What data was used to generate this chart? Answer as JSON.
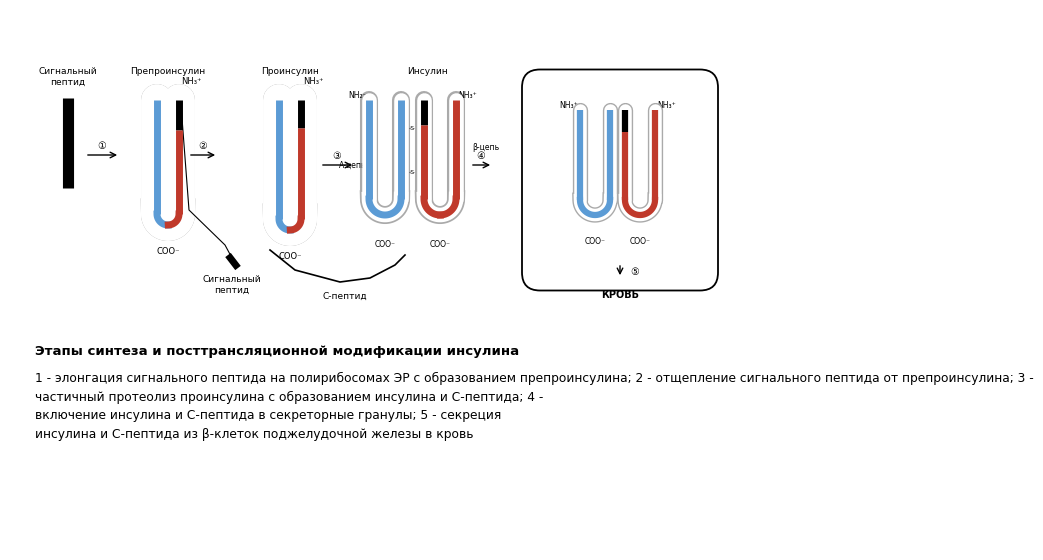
{
  "bg_color": "#ffffff",
  "title_text": "Этапы синтеза и посттрансляционной модификации инсулина",
  "body_text": "1 - элонгация сигнального пептида на полирибосомах ЭР с образованием препроинсулина; 2 - отщепление сигнального пептида от препроинсулина; 3 -\nчастичный протеолиз проинсулина с образованием инсулина и С-пептида; 4 -\nвключение инсулина и С-пептида в секреторные гранулы; 5 - секреция\nинсулина и С-пептида из β-клеток поджелудочной железы в кровь",
  "colors": {
    "blue_chain": "#5b9bd5",
    "red_chain": "#c0392b",
    "black": "#000000",
    "outline": "#888888",
    "white": "#ffffff"
  }
}
